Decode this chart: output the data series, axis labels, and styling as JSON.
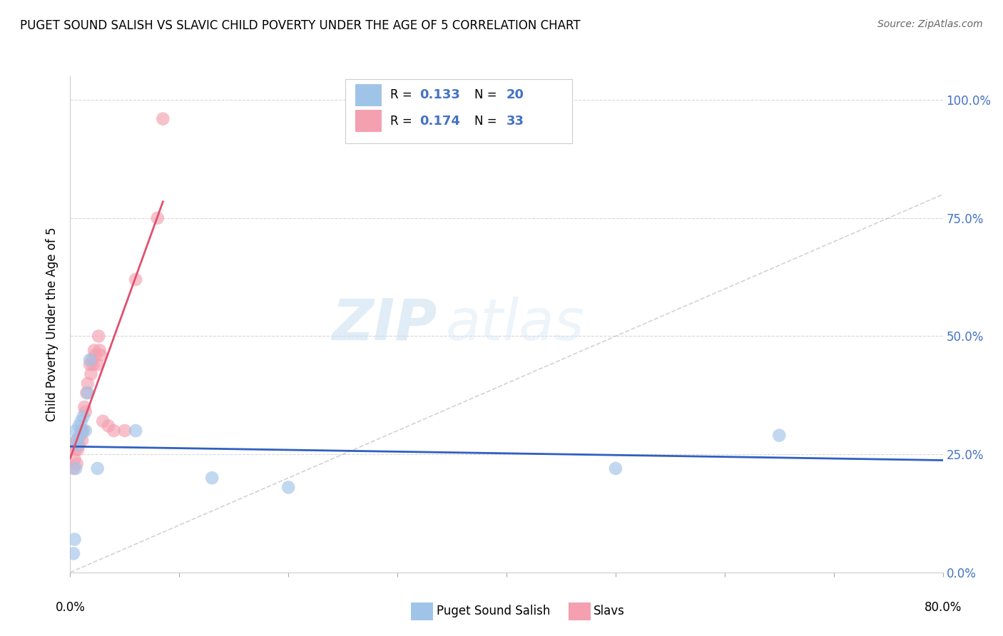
{
  "title": "PUGET SOUND SALISH VS SLAVIC CHILD POVERTY UNDER THE AGE OF 5 CORRELATION CHART",
  "source": "Source: ZipAtlas.com",
  "ylabel": "Child Poverty Under the Age of 5",
  "xlim": [
    0.0,
    0.8
  ],
  "ylim": [
    0.0,
    1.05
  ],
  "ytick_values": [
    0.0,
    0.25,
    0.5,
    0.75,
    1.0
  ],
  "salish_x": [
    0.003,
    0.004,
    0.005,
    0.005,
    0.006,
    0.007,
    0.008,
    0.009,
    0.01,
    0.011,
    0.012,
    0.014,
    0.016,
    0.018,
    0.025,
    0.06,
    0.13,
    0.2,
    0.5,
    0.65
  ],
  "salish_y": [
    0.04,
    0.07,
    0.22,
    0.3,
    0.28,
    0.27,
    0.31,
    0.29,
    0.32,
    0.3,
    0.33,
    0.3,
    0.38,
    0.45,
    0.22,
    0.3,
    0.2,
    0.18,
    0.22,
    0.29
  ],
  "slavic_x": [
    0.003,
    0.004,
    0.004,
    0.005,
    0.006,
    0.006,
    0.007,
    0.008,
    0.009,
    0.01,
    0.011,
    0.012,
    0.013,
    0.014,
    0.015,
    0.016,
    0.018,
    0.019,
    0.02,
    0.021,
    0.022,
    0.023,
    0.025,
    0.026,
    0.027,
    0.028,
    0.03,
    0.035,
    0.04,
    0.05,
    0.06,
    0.08,
    0.085
  ],
  "slavic_y": [
    0.22,
    0.24,
    0.27,
    0.26,
    0.23,
    0.28,
    0.26,
    0.27,
    0.29,
    0.3,
    0.28,
    0.3,
    0.35,
    0.34,
    0.38,
    0.4,
    0.44,
    0.42,
    0.45,
    0.44,
    0.47,
    0.46,
    0.44,
    0.5,
    0.47,
    0.46,
    0.32,
    0.31,
    0.3,
    0.3,
    0.62,
    0.75,
    0.96
  ],
  "salish_color": "#a0c4e8",
  "slavic_color": "#f4a0b0",
  "salish_line_color": "#3060c0",
  "slavic_line_color": "#e05070",
  "diag_line_color": "#c8c8c8",
  "watermark_zip": "ZIP",
  "watermark_atlas": "atlas",
  "background_color": "#ffffff",
  "grid_color": "#d8d8d8",
  "right_label_color": "#4472c4",
  "R_salish": 0.133,
  "N_salish": 20,
  "R_slavic": 0.174,
  "N_slavic": 33
}
